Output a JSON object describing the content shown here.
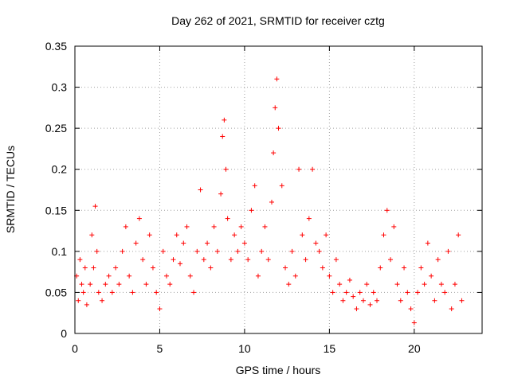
{
  "chart_data": {
    "type": "scatter",
    "title": "Day 262 of 2021, SRMTID for receiver cztg",
    "xlabel": "GPS time / hours",
    "ylabel": "SRMTID / TECUs",
    "xlim": [
      0,
      24
    ],
    "ylim": [
      0,
      0.35
    ],
    "xticks": [
      0,
      5,
      10,
      15,
      20
    ],
    "yticks": [
      0,
      0.05,
      0.1,
      0.15,
      0.2,
      0.25,
      0.3,
      0.35
    ],
    "xtick_labels": [
      "0",
      "5",
      "10",
      "15",
      "20"
    ],
    "ytick_labels": [
      "0",
      "0.05",
      "0.1",
      "0.15",
      "0.2",
      "0.25",
      "0.3",
      "0.35"
    ],
    "grid": true,
    "marker": "+",
    "marker_color": "#ff0000",
    "series": [
      {
        "name": "SRMTID",
        "points": [
          [
            0.1,
            0.07
          ],
          [
            0.2,
            0.04
          ],
          [
            0.3,
            0.09
          ],
          [
            0.4,
            0.06
          ],
          [
            0.5,
            0.05
          ],
          [
            0.6,
            0.08
          ],
          [
            0.7,
            0.035
          ],
          [
            0.9,
            0.06
          ],
          [
            1.0,
            0.12
          ],
          [
            1.1,
            0.08
          ],
          [
            1.2,
            0.155
          ],
          [
            1.3,
            0.1
          ],
          [
            1.4,
            0.05
          ],
          [
            1.6,
            0.04
          ],
          [
            1.8,
            0.06
          ],
          [
            2.0,
            0.07
          ],
          [
            2.2,
            0.05
          ],
          [
            2.4,
            0.08
          ],
          [
            2.6,
            0.06
          ],
          [
            2.8,
            0.1
          ],
          [
            3.0,
            0.13
          ],
          [
            3.2,
            0.07
          ],
          [
            3.4,
            0.05
          ],
          [
            3.6,
            0.11
          ],
          [
            3.8,
            0.14
          ],
          [
            4.0,
            0.09
          ],
          [
            4.2,
            0.06
          ],
          [
            4.4,
            0.12
          ],
          [
            4.6,
            0.08
          ],
          [
            4.8,
            0.05
          ],
          [
            5.0,
            0.03
          ],
          [
            5.2,
            0.1
          ],
          [
            5.4,
            0.07
          ],
          [
            5.6,
            0.06
          ],
          [
            5.8,
            0.09
          ],
          [
            6.0,
            0.12
          ],
          [
            6.2,
            0.085
          ],
          [
            6.4,
            0.11
          ],
          [
            6.6,
            0.13
          ],
          [
            6.8,
            0.07
          ],
          [
            7.0,
            0.05
          ],
          [
            7.2,
            0.1
          ],
          [
            7.4,
            0.175
          ],
          [
            7.6,
            0.09
          ],
          [
            7.8,
            0.11
          ],
          [
            8.0,
            0.08
          ],
          [
            8.2,
            0.13
          ],
          [
            8.4,
            0.1
          ],
          [
            8.6,
            0.17
          ],
          [
            8.7,
            0.24
          ],
          [
            8.8,
            0.26
          ],
          [
            8.9,
            0.2
          ],
          [
            9.0,
            0.14
          ],
          [
            9.2,
            0.09
          ],
          [
            9.4,
            0.12
          ],
          [
            9.6,
            0.1
          ],
          [
            9.8,
            0.13
          ],
          [
            10.0,
            0.11
          ],
          [
            10.2,
            0.09
          ],
          [
            10.4,
            0.15
          ],
          [
            10.6,
            0.18
          ],
          [
            10.8,
            0.07
          ],
          [
            11.0,
            0.1
          ],
          [
            11.2,
            0.13
          ],
          [
            11.4,
            0.09
          ],
          [
            11.6,
            0.16
          ],
          [
            11.7,
            0.22
          ],
          [
            11.8,
            0.275
          ],
          [
            11.9,
            0.31
          ],
          [
            12.0,
            0.25
          ],
          [
            12.2,
            0.18
          ],
          [
            12.4,
            0.08
          ],
          [
            12.6,
            0.06
          ],
          [
            12.8,
            0.1
          ],
          [
            13.0,
            0.07
          ],
          [
            13.2,
            0.2
          ],
          [
            13.4,
            0.12
          ],
          [
            13.6,
            0.09
          ],
          [
            13.8,
            0.14
          ],
          [
            14.0,
            0.2
          ],
          [
            14.2,
            0.11
          ],
          [
            14.4,
            0.1
          ],
          [
            14.6,
            0.08
          ],
          [
            14.8,
            0.12
          ],
          [
            15.0,
            0.07
          ],
          [
            15.2,
            0.05
          ],
          [
            15.4,
            0.09
          ],
          [
            15.6,
            0.06
          ],
          [
            15.8,
            0.04
          ],
          [
            16.0,
            0.05
          ],
          [
            16.2,
            0.065
          ],
          [
            16.4,
            0.045
          ],
          [
            16.6,
            0.03
          ],
          [
            16.8,
            0.05
          ],
          [
            17.0,
            0.04
          ],
          [
            17.2,
            0.06
          ],
          [
            17.4,
            0.035
          ],
          [
            17.6,
            0.05
          ],
          [
            17.8,
            0.04
          ],
          [
            18.0,
            0.08
          ],
          [
            18.2,
            0.12
          ],
          [
            18.4,
            0.15
          ],
          [
            18.6,
            0.09
          ],
          [
            18.8,
            0.13
          ],
          [
            19.0,
            0.06
          ],
          [
            19.2,
            0.04
          ],
          [
            19.4,
            0.08
          ],
          [
            19.6,
            0.05
          ],
          [
            19.8,
            0.03
          ],
          [
            20.0,
            0.013
          ],
          [
            20.2,
            0.05
          ],
          [
            20.4,
            0.08
          ],
          [
            20.6,
            0.06
          ],
          [
            20.8,
            0.11
          ],
          [
            21.0,
            0.07
          ],
          [
            21.2,
            0.04
          ],
          [
            21.4,
            0.09
          ],
          [
            21.6,
            0.06
          ],
          [
            21.8,
            0.05
          ],
          [
            22.0,
            0.1
          ],
          [
            22.2,
            0.03
          ],
          [
            22.4,
            0.06
          ],
          [
            22.6,
            0.12
          ],
          [
            22.8,
            0.04
          ]
        ]
      }
    ]
  }
}
